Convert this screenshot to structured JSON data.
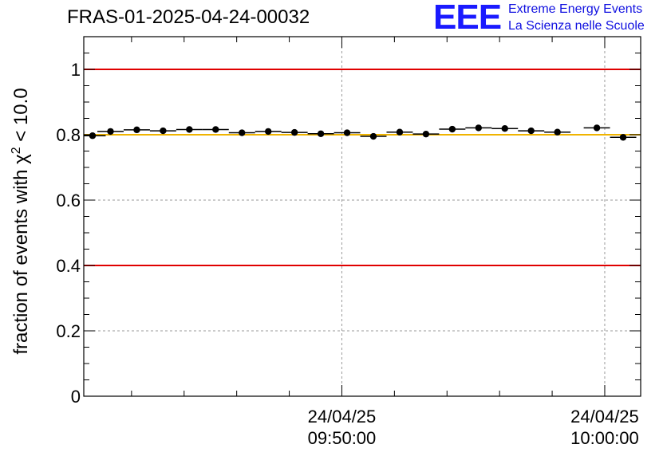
{
  "header": {
    "title": "FRAS-01-2025-04-24-00032",
    "logo_mark": "EEE",
    "logo_line1": "Extreme Energy Events",
    "logo_line2": "La Scienza nelle Scuole"
  },
  "chart_data": {
    "type": "scatter",
    "title": "FRAS-01-2025-04-24-00032",
    "ylabel": "fraction of events with χ² < 10.0",
    "ylabel_parts": {
      "prefix": "fraction of events with ",
      "chi": "χ",
      "exp": "2",
      "suffix": " < 10.0"
    },
    "xlabel": "",
    "ylim": [
      0,
      1.1
    ],
    "yticks": [
      0,
      0.2,
      0.4,
      0.6,
      0.8,
      1
    ],
    "ytick_labels": [
      "0",
      "0.2",
      "0.4",
      "0.6",
      "0.8",
      "1"
    ],
    "xlim": [
      "2025-04-24 09:40:11",
      "2025-04-24 10:01:22"
    ],
    "xticks": [
      {
        "date": "24/04/25",
        "time": "09:50:00",
        "x": "2025-04-24 09:50:00"
      },
      {
        "date": "24/04/25",
        "time": "10:00:00",
        "x": "2025-04-24 10:00:00"
      }
    ],
    "grid": true,
    "reference_lines": [
      {
        "y": 1.0,
        "color": "#e00000"
      },
      {
        "y": 0.4,
        "color": "#e00000"
      },
      {
        "y": 0.8,
        "color": "#f0b400"
      }
    ],
    "series": [
      {
        "color": "#000000",
        "points": [
          {
            "x": "2025-04-24 09:40:31",
            "y": 0.797
          },
          {
            "x": "2025-04-24 09:41:12",
            "y": 0.81
          },
          {
            "x": "2025-04-24 09:42:12",
            "y": 0.815
          },
          {
            "x": "2025-04-24 09:43:12",
            "y": 0.812
          },
          {
            "x": "2025-04-24 09:44:12",
            "y": 0.816
          },
          {
            "x": "2025-04-24 09:45:12",
            "y": 0.816
          },
          {
            "x": "2025-04-24 09:46:12",
            "y": 0.806
          },
          {
            "x": "2025-04-24 09:47:12",
            "y": 0.81
          },
          {
            "x": "2025-04-24 09:48:12",
            "y": 0.807
          },
          {
            "x": "2025-04-24 09:49:12",
            "y": 0.803
          },
          {
            "x": "2025-04-24 09:50:12",
            "y": 0.806
          },
          {
            "x": "2025-04-24 09:51:12",
            "y": 0.795
          },
          {
            "x": "2025-04-24 09:52:12",
            "y": 0.808
          },
          {
            "x": "2025-04-24 09:53:12",
            "y": 0.802
          },
          {
            "x": "2025-04-24 09:54:12",
            "y": 0.817
          },
          {
            "x": "2025-04-24 09:55:12",
            "y": 0.821
          },
          {
            "x": "2025-04-24 09:56:12",
            "y": 0.819
          },
          {
            "x": "2025-04-24 09:57:12",
            "y": 0.812
          },
          {
            "x": "2025-04-24 09:58:12",
            "y": 0.808
          },
          {
            "x": "2025-04-24 09:59:42",
            "y": 0.821
          },
          {
            "x": "2025-04-24 10:00:42",
            "y": 0.792
          }
        ],
        "bin_halfwidth_seconds": 30
      }
    ]
  }
}
